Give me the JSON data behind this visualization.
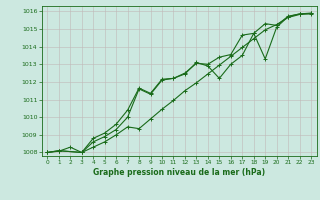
{
  "xlabel": "Graphe pression niveau de la mer (hPa)",
  "xlim": [
    -0.5,
    23.5
  ],
  "ylim": [
    1007.8,
    1016.3
  ],
  "yticks": [
    1008,
    1009,
    1010,
    1011,
    1012,
    1013,
    1014,
    1015,
    1016
  ],
  "xticks": [
    0,
    1,
    2,
    3,
    4,
    5,
    6,
    7,
    8,
    9,
    10,
    11,
    12,
    13,
    14,
    15,
    16,
    17,
    18,
    19,
    20,
    21,
    22,
    23
  ],
  "background_color": "#cce8e0",
  "grid_color": "#c0b8b8",
  "line_color": "#1a6b1a",
  "series1": {
    "x": [
      0,
      1,
      3,
      4,
      5,
      6,
      7,
      8,
      9,
      10,
      11,
      12,
      13,
      14,
      15,
      16,
      17,
      18,
      19,
      20,
      21,
      22,
      23
    ],
    "y": [
      1008.0,
      1008.1,
      1008.0,
      1008.8,
      1009.1,
      1009.6,
      1010.4,
      1011.65,
      1011.35,
      1012.15,
      1012.2,
      1012.45,
      1013.1,
      1012.9,
      1012.2,
      1013.0,
      1013.5,
      1014.75,
      1013.3,
      1015.1,
      1015.7,
      1015.85,
      1015.85
    ]
  },
  "series2": {
    "x": [
      0,
      1,
      3,
      4,
      5,
      6,
      7,
      8,
      9,
      10,
      11,
      12,
      13,
      14,
      15,
      16,
      17,
      18,
      19,
      20,
      21,
      22,
      23
    ],
    "y": [
      1008.0,
      1008.1,
      1008.0,
      1008.6,
      1008.9,
      1009.3,
      1010.0,
      1011.6,
      1011.3,
      1012.1,
      1012.2,
      1012.5,
      1013.05,
      1013.0,
      1013.4,
      1013.55,
      1014.65,
      1014.75,
      1015.3,
      1015.2,
      1015.72,
      1015.85,
      1015.9
    ]
  },
  "series3": {
    "x": [
      0,
      1,
      2,
      3,
      4,
      5,
      6,
      7,
      8,
      9,
      10,
      11,
      12,
      13,
      14,
      15,
      16,
      17,
      18,
      19,
      20,
      21,
      22,
      23
    ],
    "y": [
      1008.0,
      1008.07,
      1008.3,
      1008.0,
      1008.3,
      1008.6,
      1009.0,
      1009.45,
      1009.35,
      1009.9,
      1010.45,
      1010.95,
      1011.5,
      1011.95,
      1012.45,
      1012.95,
      1013.45,
      1013.95,
      1014.45,
      1014.95,
      1015.25,
      1015.65,
      1015.82,
      1015.88
    ]
  }
}
